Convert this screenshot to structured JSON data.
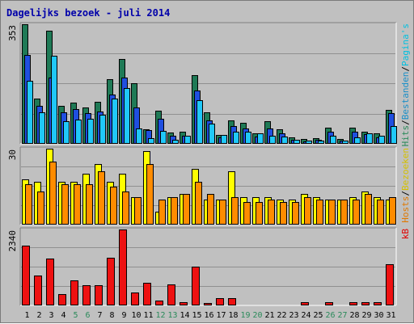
{
  "chart_data": {
    "type": "bar",
    "title": "Dagelijks bezoek - juli 2014",
    "categories": [
      "1",
      "2",
      "3",
      "4",
      "5",
      "6",
      "7",
      "8",
      "9",
      "10",
      "11",
      "12",
      "13",
      "14",
      "15",
      "16",
      "17",
      "18",
      "19",
      "20",
      "21",
      "22",
      "23",
      "24",
      "25",
      "26",
      "27",
      "28",
      "29",
      "30",
      "31"
    ],
    "weekend_days": [
      "5",
      "6",
      "12",
      "13",
      "19",
      "20",
      "26",
      "27"
    ],
    "panels": [
      {
        "name": "hits-panel",
        "max_label": "353",
        "max": 353,
        "legend": [
          {
            "text": "Hits",
            "color": "#2a8a5a"
          },
          {
            "text": "/",
            "color": "#000000"
          },
          {
            "text": "Bestanden",
            "color": "#1a8fc8"
          },
          {
            "text": "/",
            "color": "#000000"
          },
          {
            "text": "Pagina's",
            "color": "#00c0e0"
          }
        ],
        "series": [
          {
            "name": "Hits",
            "color": "#1f7a56",
            "values": [
              353,
              133,
              335,
              111,
              121,
              107,
              124,
              190,
              250,
              178,
              43,
              98,
              34,
              36,
              202,
              94,
              26,
              70,
              63,
              30,
              67,
              43,
              20,
              15,
              16,
              48,
              14,
              47,
              35,
              30,
              100
            ]
          },
          {
            "name": "Bestanden",
            "color": "#1f4fe0",
            "values": [
              263,
              111,
              195,
              92,
              102,
              91,
              96,
              146,
              195,
              107,
              41,
              74,
              23,
              24,
              158,
              68,
              18,
              52,
              46,
              22,
              45,
              30,
              13,
              8,
              12,
              36,
              10,
              36,
              29,
              18,
              90
            ]
          },
          {
            "name": "Pagina's",
            "color": "#20c8f8",
            "values": [
              186,
              92,
              260,
              67,
              71,
              74,
              86,
              134,
              165,
              46,
              16,
              39,
              13,
              23,
              129,
              60,
              26,
              36,
              36,
              30,
              25,
              21,
              11,
              9,
              9,
              24,
              10,
              20,
              30,
              25,
              52
            ]
          }
        ]
      },
      {
        "name": "visits-panel",
        "max_label": "30",
        "max": 30,
        "legend": [
          {
            "text": "Hosts",
            "color": "#e07800"
          },
          {
            "text": "/",
            "color": "#000000"
          },
          {
            "text": "Bezoeken",
            "color": "#d4c000"
          }
        ],
        "series": [
          {
            "name": "Bezoeken",
            "color": "#ffff00",
            "values": [
              18,
              17,
              30,
              17,
              17,
              20,
              24,
              17,
              20,
              11,
              29,
              5,
              11,
              12,
              22,
              10,
              10,
              21,
              11,
              11,
              11,
              10,
              10,
              12,
              11,
              10,
              10,
              11,
              13,
              11,
              10
            ]
          },
          {
            "name": "Hosts",
            "color": "#ff8c00",
            "values": [
              16,
              13,
              25,
              16,
              16,
              16,
              21,
              15,
              13,
              11,
              24,
              10,
              11,
              12,
              17,
              12,
              10,
              11,
              9,
              9,
              10,
              9,
              9,
              11,
              10,
              10,
              10,
              10,
              12,
              10,
              11
            ]
          }
        ]
      },
      {
        "name": "kb-panel",
        "max_label": "2340",
        "max": 2340,
        "legend": [
          {
            "text": "kB",
            "color": "#e00000"
          }
        ],
        "series": [
          {
            "name": "kB",
            "color": "#ee1111",
            "values": [
              1832,
              910,
              1434,
              343,
              780,
              615,
              610,
              1470,
              2340,
              407,
              700,
              147,
              656,
              94,
              1200,
              70,
              222,
              222,
              26,
              26,
              26,
              26,
              26,
              96,
              26,
              96,
              26,
              96,
              96,
              96,
              1280
            ]
          }
        ]
      }
    ]
  }
}
